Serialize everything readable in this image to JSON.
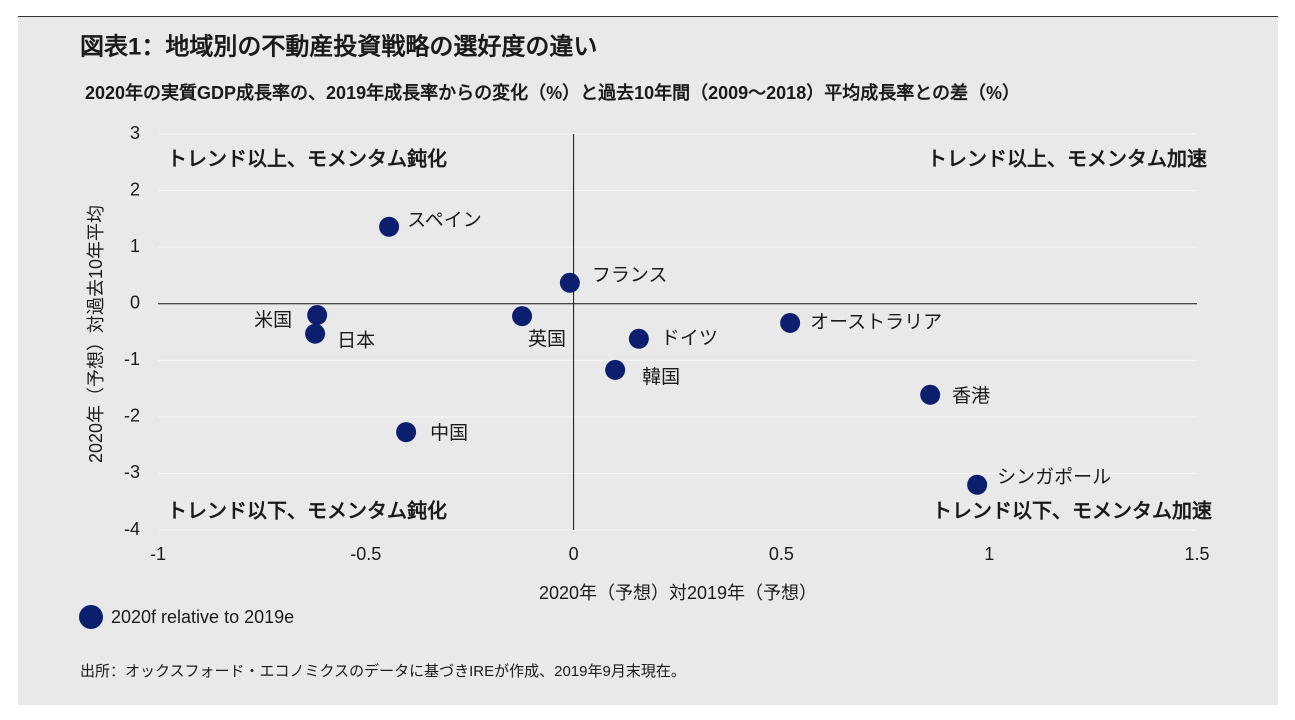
{
  "chart_data": {
    "type": "scatter",
    "title": "図表1：地域別の不動産投資戦略の選好度の違い",
    "subtitle": "2020年の実質GDP成長率の、2019年成長率からの変化（%）と過去10年間（2009～2018）平均成長率との差（%）",
    "x_label": "2020年（予想）対2019年（予想）",
    "y_label": "2020年（予想）対過去10年平均",
    "annotations": [
      "トレンド以上、モメンタム鈍化",
      "トレンド以上、モメンタム加速",
      "トレンド以下、モメンタム鈍化",
      "トレンド以下、モメンタム加速"
    ],
    "point_labels": [
      "スペイン",
      "フランス",
      "米国",
      "日本",
      "英国",
      "ドイツ",
      "オーストラリア",
      "韓国",
      "香港",
      "中国",
      "シンガポール"
    ],
    "series": [
      {
        "name": "2020f relative to 2019e",
        "color": "#0c1f6e",
        "x": [
          -0.444,
          -0.009,
          -0.617,
          -0.622,
          -0.124,
          0.157,
          0.521,
          0.1,
          0.858,
          -0.403,
          0.971
        ],
        "values": [
          1.36,
          0.37,
          -0.2,
          -0.53,
          -0.22,
          -0.62,
          -0.34,
          -1.17,
          -1.61,
          -2.27,
          -3.2
        ]
      }
    ],
    "xlim": [
      -1,
      1.5
    ],
    "xticks": [
      -1,
      -0.5,
      0,
      0.5,
      1,
      1.5
    ],
    "ylim": [
      -4,
      3
    ],
    "yticks": [
      3,
      2,
      1,
      0,
      -1,
      -2,
      -3,
      -4
    ],
    "grid": true,
    "source": "出所：オックスフォード・エコノミクスのデータに基づきIREが作成、2019年9月末現在。"
  }
}
